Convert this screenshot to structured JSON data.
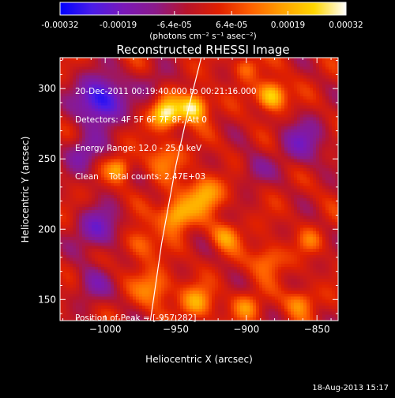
{
  "colorbar": {
    "tick_labels": [
      "-0.00032",
      "-0.00019",
      "-6.4e-05",
      "6.4e-05",
      "0.00019",
      "0.00032"
    ],
    "tick_values": [
      -0.00032,
      -0.00019,
      -6.4e-05,
      6.4e-05,
      0.00019,
      0.00032
    ],
    "range": [
      -0.00032,
      0.00032
    ],
    "unit_label": "(photons cm⁻² s⁻¹ asec⁻²)",
    "colors": [
      "#0000ff",
      "#4a1ce8",
      "#7a18b8",
      "#8b1a8a",
      "#b8142a",
      "#e02000",
      "#ff6000",
      "#ffa200",
      "#ffd600",
      "#ffffff"
    ]
  },
  "info": {
    "line1": "20-Dec-2011 00:19:40.000 to 00:21:16.000",
    "line2": "Detectors: 4F 5F 6F 7F 8F, Att 0",
    "line3": "Energy Range: 12.0 - 25.0 keV",
    "line4": "Clean    Total counts: 2.47E+03",
    "peak": "Position of Peak = [-957,282]"
  },
  "footer_date": "18-Aug-2013 15:17",
  "chart_data": {
    "type": "heatmap",
    "title": "Reconstructed RHESSI Image",
    "xlabel": "Heliocentric X (arcsec)",
    "ylabel": "Heliocentric Y (arcsec)",
    "xlim": [
      -1032,
      -835
    ],
    "ylim": [
      135,
      322
    ],
    "x_ticks": [
      -1000,
      -950,
      -900,
      -850
    ],
    "x_tick_labels": [
      "−1000",
      "−950",
      "−900",
      "−850"
    ],
    "y_ticks": [
      150,
      200,
      250,
      300
    ],
    "y_tick_labels": [
      "150",
      "200",
      "250",
      "300"
    ],
    "color_range": [
      -0.00032,
      0.00032
    ],
    "grid": false,
    "limb_curve": {
      "x": [
        -932,
        -940,
        -950,
        -960,
        -968
      ],
      "y": [
        322,
        290,
        245,
        190,
        135
      ]
    },
    "peak_position": [
      -957,
      282
    ],
    "sources": [
      {
        "x": -957,
        "y": 282,
        "sigma": 7,
        "value": 0.00032
      },
      {
        "x": -937,
        "y": 287,
        "sigma": 7,
        "value": 0.00031
      },
      {
        "x": -882,
        "y": 295,
        "sigma": 7,
        "value": 0.00028
      },
      {
        "x": -990,
        "y": 243,
        "sigma": 6,
        "value": 0.00018
      },
      {
        "x": -958,
        "y": 250,
        "sigma": 9,
        "value": 0.00013
      },
      {
        "x": -950,
        "y": 210,
        "sigma": 8,
        "value": 0.00025
      },
      {
        "x": -930,
        "y": 225,
        "sigma": 9,
        "value": 0.00021
      },
      {
        "x": -975,
        "y": 190,
        "sigma": 8,
        "value": 0.00014
      },
      {
        "x": -915,
        "y": 195,
        "sigma": 7,
        "value": 0.00016
      },
      {
        "x": -885,
        "y": 178,
        "sigma": 8,
        "value": 0.00015
      },
      {
        "x": -855,
        "y": 192,
        "sigma": 6,
        "value": 0.0001
      },
      {
        "x": -965,
        "y": 158,
        "sigma": 9,
        "value": 0.00016
      },
      {
        "x": -935,
        "y": 148,
        "sigma": 8,
        "value": 0.00018
      },
      {
        "x": -900,
        "y": 145,
        "sigma": 7,
        "value": 0.00014
      },
      {
        "x": -862,
        "y": 148,
        "sigma": 7,
        "value": 0.00016
      },
      {
        "x": -1003,
        "y": 292,
        "sigma": 12,
        "value": -0.0003
      },
      {
        "x": -1015,
        "y": 255,
        "sigma": 9,
        "value": -0.00016
      },
      {
        "x": -1005,
        "y": 200,
        "sigma": 11,
        "value": -0.00018
      },
      {
        "x": -1010,
        "y": 160,
        "sigma": 9,
        "value": -0.00012
      },
      {
        "x": -860,
        "y": 262,
        "sigma": 12,
        "value": -0.00015
      },
      {
        "x": -895,
        "y": 242,
        "sigma": 8,
        "value": -0.0001
      },
      {
        "x": -965,
        "y": 305,
        "sigma": 7,
        "value": -8e-05
      },
      {
        "x": -900,
        "y": 315,
        "sigma": 6,
        "value": 0.00012
      }
    ]
  }
}
